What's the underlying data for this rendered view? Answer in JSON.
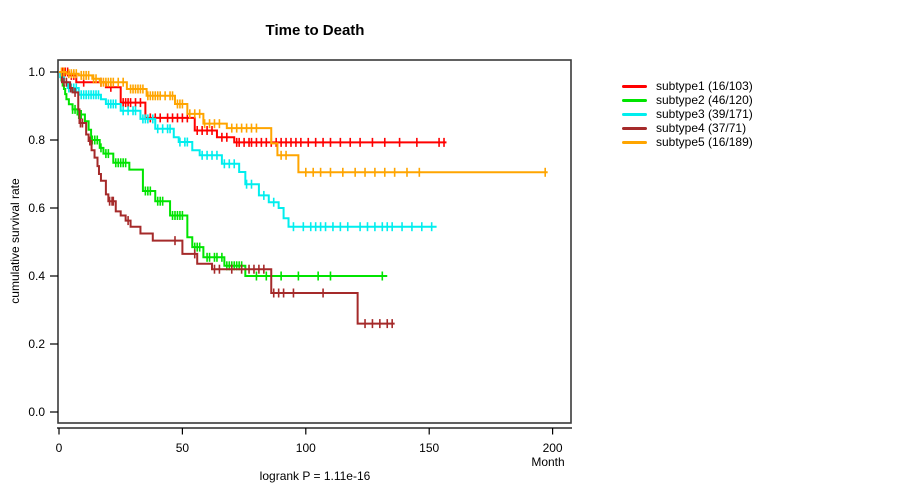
{
  "title": "Time to Death",
  "footer": {
    "annotation": "logrank P = 1.11e-16"
  },
  "chart_data": {
    "type": "line",
    "subtype": "kaplan-meier-step-curves",
    "title": "Time to Death",
    "xlabel": "Month",
    "ylabel": "cumulative survival rate",
    "annotation": "logrank P = 1.11e-16",
    "xlim": [
      0,
      200
    ],
    "ylim": [
      0.0,
      1.0
    ],
    "grid": false,
    "legend_position": "right-outside",
    "x_ticks": [
      {
        "v": 0,
        "label": "0"
      },
      {
        "v": 50,
        "label": "50"
      },
      {
        "v": 100,
        "label": "100"
      },
      {
        "v": 150,
        "label": "150"
      },
      {
        "v": 200,
        "label": "200"
      }
    ],
    "y_ticks": [
      {
        "v": 0.0,
        "label": "0.0"
      },
      {
        "v": 0.2,
        "label": "0.2"
      },
      {
        "v": 0.4,
        "label": "0.4"
      },
      {
        "v": 0.6,
        "label": "0.6"
      },
      {
        "v": 0.8,
        "label": "0.8"
      },
      {
        "v": 1.0,
        "label": "1.0"
      }
    ],
    "series": [
      {
        "name": "subtype1 (16/103)",
        "color": "#ff0000",
        "end": 157,
        "steps": [
          [
            0,
            1.0
          ],
          [
            4,
            0.99
          ],
          [
            7,
            0.97
          ],
          [
            19,
            0.955
          ],
          [
            25,
            0.91
          ],
          [
            35,
            0.865
          ],
          [
            55,
            0.828
          ],
          [
            64,
            0.808
          ],
          [
            71,
            0.793
          ]
        ],
        "censors": [
          1.5,
          2.5,
          3.5,
          5,
          6,
          10,
          17,
          21,
          26,
          27,
          28,
          29,
          31,
          33,
          37,
          39,
          41,
          44,
          46,
          48,
          50,
          52,
          56,
          58,
          60,
          62,
          66,
          68,
          72,
          73,
          75,
          77,
          78,
          80,
          82,
          84,
          86,
          88,
          90,
          92,
          94,
          96,
          98,
          101,
          104,
          107,
          110,
          114,
          118,
          122,
          127,
          132,
          138,
          145,
          154,
          156
        ]
      },
      {
        "name": "subtype2 (46/120)",
        "color": "#00e400",
        "end": 133,
        "steps": [
          [
            0,
            1.0
          ],
          [
            1,
            0.975
          ],
          [
            1.5,
            0.96
          ],
          [
            2,
            0.95
          ],
          [
            2.5,
            0.935
          ],
          [
            3,
            0.92
          ],
          [
            4,
            0.905
          ],
          [
            5.5,
            0.89
          ],
          [
            7.5,
            0.875
          ],
          [
            10.5,
            0.855
          ],
          [
            12,
            0.83
          ],
          [
            13,
            0.8
          ],
          [
            16.5,
            0.777
          ],
          [
            18,
            0.76
          ],
          [
            22,
            0.733
          ],
          [
            28.5,
            0.713
          ],
          [
            34,
            0.65
          ],
          [
            39,
            0.62
          ],
          [
            45,
            0.578
          ],
          [
            52,
            0.514
          ],
          [
            54,
            0.485
          ],
          [
            58.5,
            0.455
          ],
          [
            67,
            0.43
          ],
          [
            75.5,
            0.4
          ]
        ],
        "censors": [
          5.5,
          6.5,
          8,
          9,
          13.5,
          14.5,
          15.5,
          17,
          19,
          20,
          23,
          24,
          25,
          26,
          27,
          35,
          36,
          37,
          40,
          41,
          42,
          46,
          47,
          48,
          49,
          50,
          55,
          56,
          57,
          60,
          61,
          63,
          64,
          66,
          68,
          69,
          70,
          71,
          72,
          73,
          74,
          80,
          84,
          90,
          97,
          105,
          110,
          131
        ]
      },
      {
        "name": "subtype3 (39/171)",
        "color": "#00eeee",
        "end": 153,
        "steps": [
          [
            0,
            1.0
          ],
          [
            0.5,
            0.985
          ],
          [
            2,
            0.97
          ],
          [
            3.5,
            0.953
          ],
          [
            8,
            0.933
          ],
          [
            17,
            0.92
          ],
          [
            19,
            0.906
          ],
          [
            25,
            0.886
          ],
          [
            33,
            0.862
          ],
          [
            39,
            0.833
          ],
          [
            46.5,
            0.808
          ],
          [
            48.5,
            0.794
          ],
          [
            54,
            0.77
          ],
          [
            57,
            0.755
          ],
          [
            66,
            0.73
          ],
          [
            73,
            0.706
          ],
          [
            75.5,
            0.67
          ],
          [
            81,
            0.637
          ],
          [
            85,
            0.617
          ],
          [
            89,
            0.6
          ],
          [
            91,
            0.57
          ],
          [
            93,
            0.545
          ]
        ],
        "censors": [
          4,
          5,
          6,
          7,
          9,
          10,
          11,
          12,
          13,
          14,
          15,
          16,
          20,
          21,
          22,
          23,
          26,
          28,
          30,
          31,
          34,
          35,
          36,
          38,
          40,
          42,
          44,
          45,
          49,
          51,
          52,
          58,
          60,
          62,
          64,
          67,
          69,
          71,
          76,
          78,
          83,
          87,
          95,
          99,
          102,
          104,
          106,
          108,
          111,
          114,
          117,
          122,
          125,
          128,
          131,
          133,
          135,
          139,
          143,
          147,
          151
        ]
      },
      {
        "name": "subtype4 (37/71)",
        "color": "#a52a2a",
        "end": 136,
        "steps": [
          [
            0,
            1.0
          ],
          [
            1.2,
            0.97
          ],
          [
            4.5,
            0.953
          ],
          [
            5.5,
            0.94
          ],
          [
            7.8,
            0.89
          ],
          [
            8.3,
            0.85
          ],
          [
            11,
            0.816
          ],
          [
            12,
            0.797
          ],
          [
            13.2,
            0.77
          ],
          [
            14.4,
            0.748
          ],
          [
            15.6,
            0.723
          ],
          [
            16.2,
            0.7
          ],
          [
            17,
            0.68
          ],
          [
            19,
            0.64
          ],
          [
            20,
            0.62
          ],
          [
            23,
            0.59
          ],
          [
            25,
            0.578
          ],
          [
            27,
            0.563
          ],
          [
            29,
            0.545
          ],
          [
            33,
            0.525
          ],
          [
            38,
            0.504
          ],
          [
            50,
            0.465
          ],
          [
            56,
            0.436
          ],
          [
            62,
            0.42
          ],
          [
            86,
            0.35
          ],
          [
            121,
            0.26
          ]
        ],
        "censors": [
          2,
          3,
          4.7,
          6.5,
          8.7,
          9.5,
          12.5,
          20.5,
          21.5,
          22,
          28,
          47,
          55,
          63,
          65,
          70,
          74,
          77,
          79,
          81,
          83,
          87,
          89,
          91,
          95,
          107,
          124,
          127,
          130,
          133,
          135
        ]
      },
      {
        "name": "subtype5 (16/189)",
        "color": "#ffa500",
        "end": 198,
        "steps": [
          [
            0,
            1.0
          ],
          [
            3,
            0.995
          ],
          [
            8,
            0.99
          ],
          [
            13.5,
            0.98
          ],
          [
            16.5,
            0.97
          ],
          [
            27.5,
            0.95
          ],
          [
            35.5,
            0.93
          ],
          [
            47,
            0.906
          ],
          [
            52,
            0.877
          ],
          [
            58.5,
            0.848
          ],
          [
            68,
            0.835
          ],
          [
            86,
            0.79
          ],
          [
            88.5,
            0.755
          ],
          [
            97,
            0.705
          ]
        ],
        "censors": [
          1,
          2,
          4,
          5,
          6,
          7,
          9,
          10,
          11,
          12,
          14,
          15,
          17,
          18,
          19,
          20,
          21,
          22,
          24,
          26,
          29,
          30,
          31,
          32,
          33,
          34,
          36,
          37,
          38,
          39,
          40,
          41,
          43,
          45,
          46,
          48,
          49,
          50,
          53,
          55,
          57,
          59,
          61,
          63,
          65,
          70,
          72,
          74,
          76,
          78,
          80,
          90,
          92,
          100,
          103,
          106,
          110,
          115,
          120,
          124,
          128,
          132,
          136,
          141,
          146,
          197
        ]
      }
    ]
  }
}
